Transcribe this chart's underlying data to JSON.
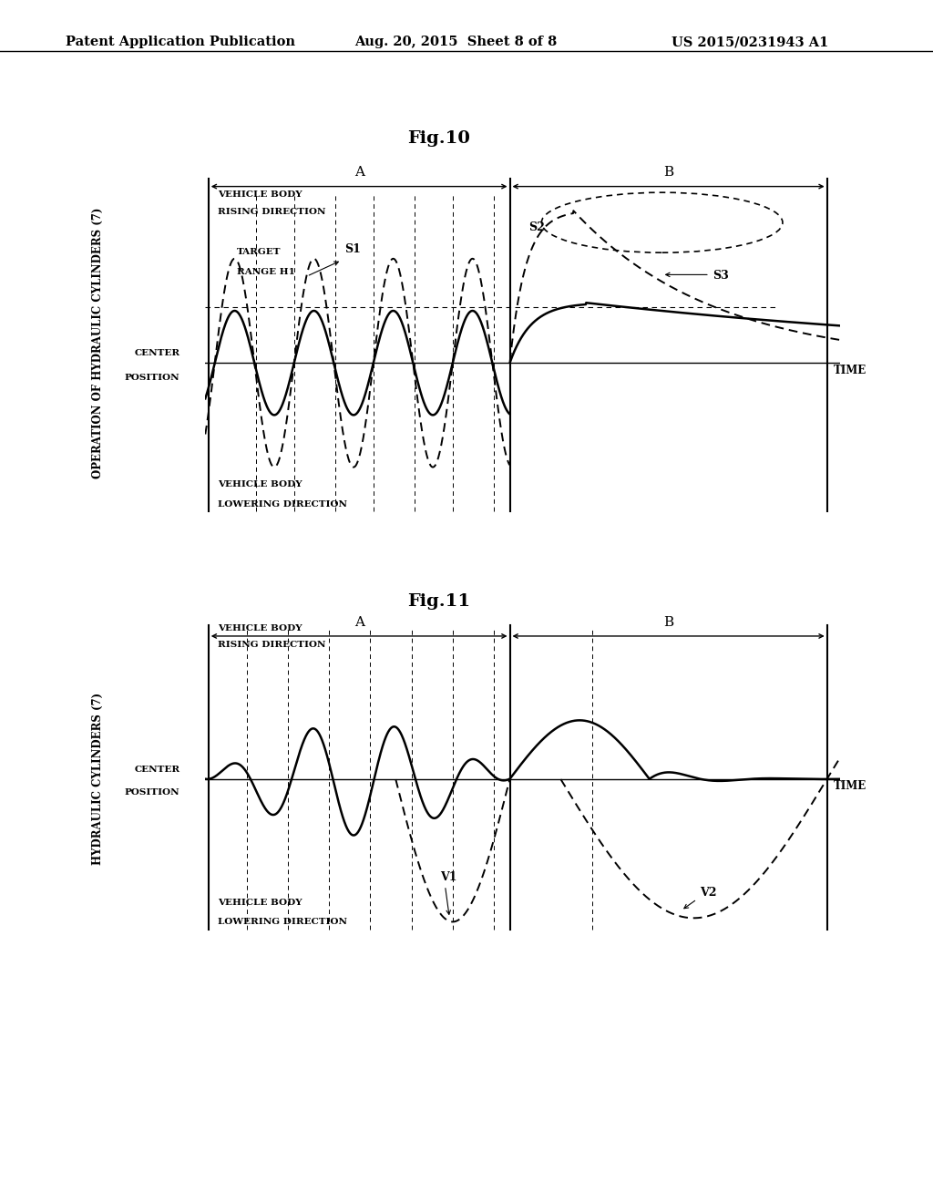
{
  "header_left": "Patent Application Publication",
  "header_center": "Aug. 20, 2015  Sheet 8 of 8",
  "header_right": "US 2015/0231943 A1",
  "fig10_title": "Fig.10",
  "fig11_title": "Fig.11",
  "bg_color": "#ffffff"
}
